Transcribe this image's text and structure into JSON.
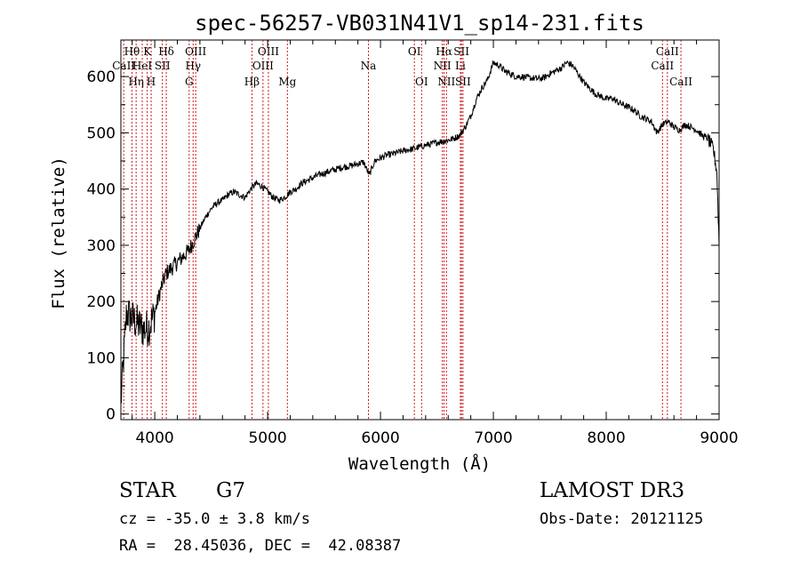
{
  "chart_data": {
    "type": "line",
    "title": "spec-56257-VB031N41V1_sp14-231.fits",
    "xlabel": "Wavelength (Å)",
    "ylabel": "Flux (relative)",
    "xlim": [
      3700,
      9000
    ],
    "ylim": [
      -10,
      665
    ],
    "x_ticks": [
      4000,
      5000,
      6000,
      7000,
      8000,
      9000
    ],
    "y_ticks": [
      0,
      100,
      200,
      300,
      400,
      500,
      600
    ],
    "grid": false,
    "series": [
      {
        "name": "flux",
        "color": "#000000",
        "x": [
          3700,
          3750,
          3800,
          3850,
          3900,
          3950,
          4000,
          4050,
          4100,
          4150,
          4200,
          4250,
          4300,
          4350,
          4400,
          4450,
          4500,
          4550,
          4600,
          4650,
          4700,
          4750,
          4800,
          4850,
          4900,
          4950,
          5000,
          5050,
          5100,
          5150,
          5200,
          5250,
          5300,
          5350,
          5400,
          5450,
          5500,
          5550,
          5600,
          5650,
          5700,
          5750,
          5800,
          5850,
          5900,
          5950,
          6000,
          6050,
          6100,
          6150,
          6200,
          6250,
          6300,
          6350,
          6400,
          6450,
          6500,
          6550,
          6600,
          6650,
          6700,
          6750,
          6800,
          6850,
          6900,
          6950,
          7000,
          7050,
          7100,
          7150,
          7200,
          7250,
          7300,
          7350,
          7400,
          7450,
          7500,
          7550,
          7600,
          7650,
          7700,
          7750,
          7800,
          7850,
          7900,
          7950,
          8000,
          8050,
          8100,
          8150,
          8200,
          8250,
          8300,
          8350,
          8400,
          8450,
          8500,
          8550,
          8600,
          8650,
          8700,
          8750,
          8800,
          8850,
          8900,
          8950,
          8980,
          9000
        ],
        "y": [
          20,
          180,
          170,
          160,
          150,
          155,
          180,
          220,
          250,
          260,
          270,
          280,
          290,
          310,
          330,
          350,
          365,
          375,
          380,
          390,
          395,
          390,
          385,
          400,
          410,
          405,
          395,
          385,
          380,
          385,
          395,
          400,
          410,
          415,
          420,
          425,
          428,
          432,
          435,
          438,
          440,
          442,
          445,
          448,
          425,
          450,
          455,
          460,
          462,
          465,
          468,
          470,
          472,
          475,
          478,
          480,
          483,
          485,
          487,
          490,
          495,
          510,
          530,
          560,
          580,
          595,
          625,
          620,
          610,
          605,
          600,
          600,
          598,
          597,
          596,
          598,
          605,
          610,
          615,
          625,
          620,
          605,
          590,
          580,
          570,
          565,
          560,
          562,
          555,
          550,
          545,
          540,
          530,
          525,
          520,
          500,
          515,
          520,
          510,
          505,
          515,
          510,
          505,
          495,
          490,
          470,
          430,
          300
        ]
      }
    ],
    "spectral_lines": [
      {
        "label": "Hθ",
        "wavelength": 3798,
        "row": 1
      },
      {
        "label": "CaII",
        "wavelength": 3725,
        "row": 2
      },
      {
        "label": "Hη",
        "wavelength": 3835,
        "row": 3
      },
      {
        "label": "K",
        "wavelength": 3934,
        "row": 1
      },
      {
        "label": "HeI",
        "wavelength": 3889,
        "row": 2
      },
      {
        "label": "H",
        "wavelength": 3968,
        "row": 3
      },
      {
        "label": "SII",
        "wavelength": 4068,
        "row": 2
      },
      {
        "label": "Hδ",
        "wavelength": 4102,
        "row": 1
      },
      {
        "label": "OIII",
        "wavelength": 4363,
        "row": 1
      },
      {
        "label": "Hγ",
        "wavelength": 4340,
        "row": 2
      },
      {
        "label": "G",
        "wavelength": 4305,
        "row": 3
      },
      {
        "label": "Hβ",
        "wavelength": 4861,
        "row": 3
      },
      {
        "label": "OIII",
        "wavelength": 5007,
        "row": 1
      },
      {
        "label": "OIII",
        "wavelength": 4959,
        "row": 2
      },
      {
        "label": "Mg",
        "wavelength": 5175,
        "row": 3
      },
      {
        "label": "Na",
        "wavelength": 5893,
        "row": 2
      },
      {
        "label": "OI",
        "wavelength": 6300,
        "row": 1
      },
      {
        "label": "OI",
        "wavelength": 6364,
        "row": 3
      },
      {
        "label": "Hα",
        "wavelength": 6563,
        "row": 1
      },
      {
        "label": "NII",
        "wavelength": 6548,
        "row": 2
      },
      {
        "label": "NII",
        "wavelength": 6584,
        "row": 3
      },
      {
        "label": "SII",
        "wavelength": 6717,
        "row": 1
      },
      {
        "label": "Li",
        "wavelength": 6708,
        "row": 2
      },
      {
        "label": "SII",
        "wavelength": 6731,
        "row": 3
      },
      {
        "label": "CaII",
        "wavelength": 8542,
        "row": 1
      },
      {
        "label": "CaII",
        "wavelength": 8498,
        "row": 2
      },
      {
        "label": "CaII",
        "wavelength": 8662,
        "row": 3
      }
    ]
  },
  "footer": {
    "class_label": "STAR",
    "subclass": "G7",
    "survey": "LAMOST DR3",
    "cz": "cz = -35.0 ± 3.8 km/s",
    "obs_date": "Obs-Date: 20121125",
    "coords": "RA =  28.45036, DEC =  42.08387"
  }
}
